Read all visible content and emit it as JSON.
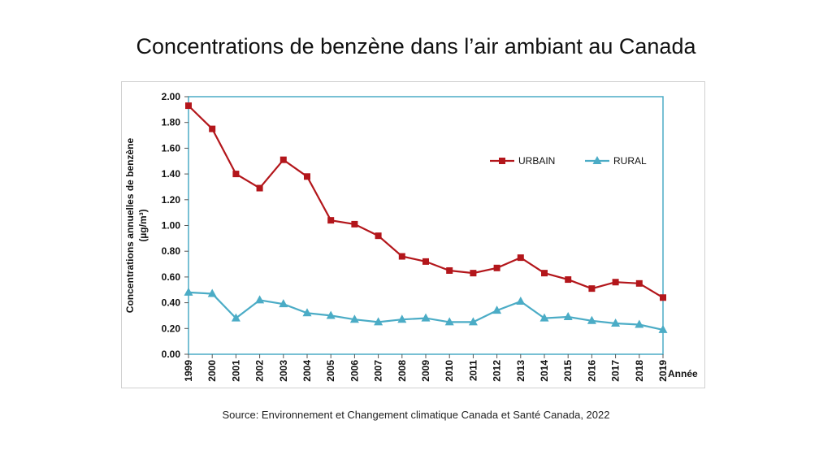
{
  "title": "Concentrations de benzène dans l’air ambiant au Canada",
  "source": "Source: Environnement et Changement climatique Canada et Santé Canada, 2022",
  "colors": {
    "urbain": "#b3161b",
    "rural": "#4bacc6",
    "axis": "#4bacc6"
  },
  "chart_data": {
    "type": "line",
    "title": "",
    "xlabel": "Année",
    "ylabel": "Concentrations annuelles de benzène",
    "ylabel_unit": "(µg/m³)",
    "ylim": [
      0,
      2
    ],
    "y_ticks": [
      "0.00",
      "0.20",
      "0.40",
      "0.60",
      "0.80",
      "1.00",
      "1.20",
      "1.40",
      "1.60",
      "1.80",
      "2.00"
    ],
    "categories": [
      "1999",
      "2000",
      "2001",
      "2002",
      "2003",
      "2004",
      "2005",
      "2006",
      "2007",
      "2008",
      "2009",
      "2010",
      "2011",
      "2012",
      "2013",
      "2014",
      "2015",
      "2016",
      "2017",
      "2018",
      "2019"
    ],
    "grid": false,
    "legend_position": "upper-right",
    "series": [
      {
        "name": "URBAIN",
        "marker": "square",
        "values": [
          1.93,
          1.75,
          1.4,
          1.29,
          1.51,
          1.38,
          1.04,
          1.01,
          0.92,
          0.76,
          0.72,
          0.65,
          0.63,
          0.67,
          0.75,
          0.63,
          0.58,
          0.51,
          0.56,
          0.55,
          0.44
        ]
      },
      {
        "name": "RURAL",
        "marker": "triangle",
        "values": [
          0.48,
          0.47,
          0.28,
          0.42,
          0.39,
          0.32,
          0.3,
          0.27,
          0.25,
          0.27,
          0.28,
          0.25,
          0.25,
          0.34,
          0.41,
          0.28,
          0.29,
          0.26,
          0.24,
          0.23,
          0.19
        ]
      }
    ]
  }
}
